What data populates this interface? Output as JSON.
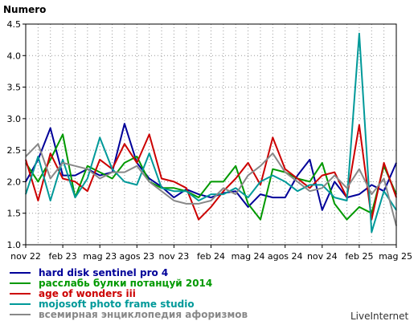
{
  "chart_data": {
    "type": "line",
    "ylabel": "Numero",
    "ylim": [
      1.0,
      4.5
    ],
    "yticks": [
      "1.0",
      "1.5",
      "2.0",
      "2.5",
      "3.0",
      "3.5",
      "4.0",
      "4.5"
    ],
    "grid": true,
    "legend_position": "bottom-left",
    "x_tick_labels": [
      "nov 22",
      "feb 23",
      "mag 23",
      "agos 23",
      "nov 23",
      "feb 24",
      "mag 24",
      "agos 24",
      "nov 24",
      "feb 25",
      "mag 25"
    ],
    "x_tick_positions": [
      0,
      3,
      6,
      9,
      12,
      15,
      18,
      21,
      24,
      27,
      30
    ],
    "x": [
      0,
      1,
      2,
      3,
      4,
      5,
      6,
      7,
      8,
      9,
      10,
      11,
      12,
      13,
      14,
      15,
      16,
      17,
      18,
      19,
      20,
      21,
      22,
      23,
      24,
      25,
      26,
      27,
      28,
      29,
      30
    ],
    "series": [
      {
        "name": "hard disk sentinel pro 4",
        "color": "#000099",
        "values": [
          2.0,
          2.35,
          2.85,
          2.1,
          2.1,
          2.2,
          2.1,
          2.15,
          2.92,
          2.3,
          2.05,
          1.92,
          1.75,
          1.88,
          1.8,
          1.75,
          1.82,
          1.85,
          1.6,
          1.8,
          1.75,
          1.75,
          2.1,
          2.35,
          1.55,
          2.0,
          1.75,
          1.8,
          1.95,
          1.85,
          2.3
        ]
      },
      {
        "name": "расслабь булки потанцуй 2014",
        "color": "#009900",
        "values": [
          2.3,
          2.0,
          2.35,
          2.75,
          1.75,
          2.25,
          2.15,
          2.05,
          2.3,
          2.4,
          2.0,
          1.9,
          1.9,
          1.85,
          1.75,
          2.0,
          2.0,
          2.25,
          1.65,
          1.4,
          2.2,
          2.15,
          2.05,
          2.0,
          2.3,
          1.65,
          1.4,
          1.6,
          1.5,
          2.25,
          1.8
        ]
      },
      {
        "name": "age of wonders iii",
        "color": "#cc0000",
        "values": [
          2.35,
          1.7,
          2.45,
          2.05,
          2.0,
          1.85,
          2.35,
          2.2,
          2.6,
          2.3,
          2.75,
          2.05,
          2.0,
          1.9,
          1.4,
          1.6,
          1.85,
          2.05,
          2.3,
          1.95,
          2.7,
          2.2,
          2.05,
          1.9,
          2.1,
          2.15,
          1.75,
          2.9,
          1.4,
          2.3,
          1.75
        ]
      },
      {
        "name": "mojosoft photo frame studio",
        "color": "#009999",
        "values": [
          1.8,
          2.4,
          1.7,
          2.35,
          1.75,
          2.05,
          2.7,
          2.2,
          2.0,
          1.95,
          2.45,
          1.9,
          1.85,
          1.85,
          1.7,
          1.8,
          1.8,
          1.9,
          1.75,
          2.0,
          2.1,
          2.0,
          1.85,
          1.95,
          1.95,
          1.75,
          1.7,
          4.35,
          1.2,
          1.85,
          1.55
        ]
      },
      {
        "name": "всемирная энциклопедия афоризмов",
        "color": "#888888",
        "values": [
          2.4,
          2.6,
          2.05,
          2.3,
          2.25,
          2.2,
          2.05,
          2.15,
          2.15,
          2.25,
          2.0,
          1.85,
          1.7,
          1.65,
          1.65,
          1.7,
          1.9,
          1.8,
          2.1,
          2.25,
          2.45,
          2.15,
          2.0,
          1.85,
          1.9,
          2.1,
          1.9,
          2.2,
          1.8,
          2.05,
          1.3
        ]
      }
    ]
  },
  "brand": "LiveInternet"
}
